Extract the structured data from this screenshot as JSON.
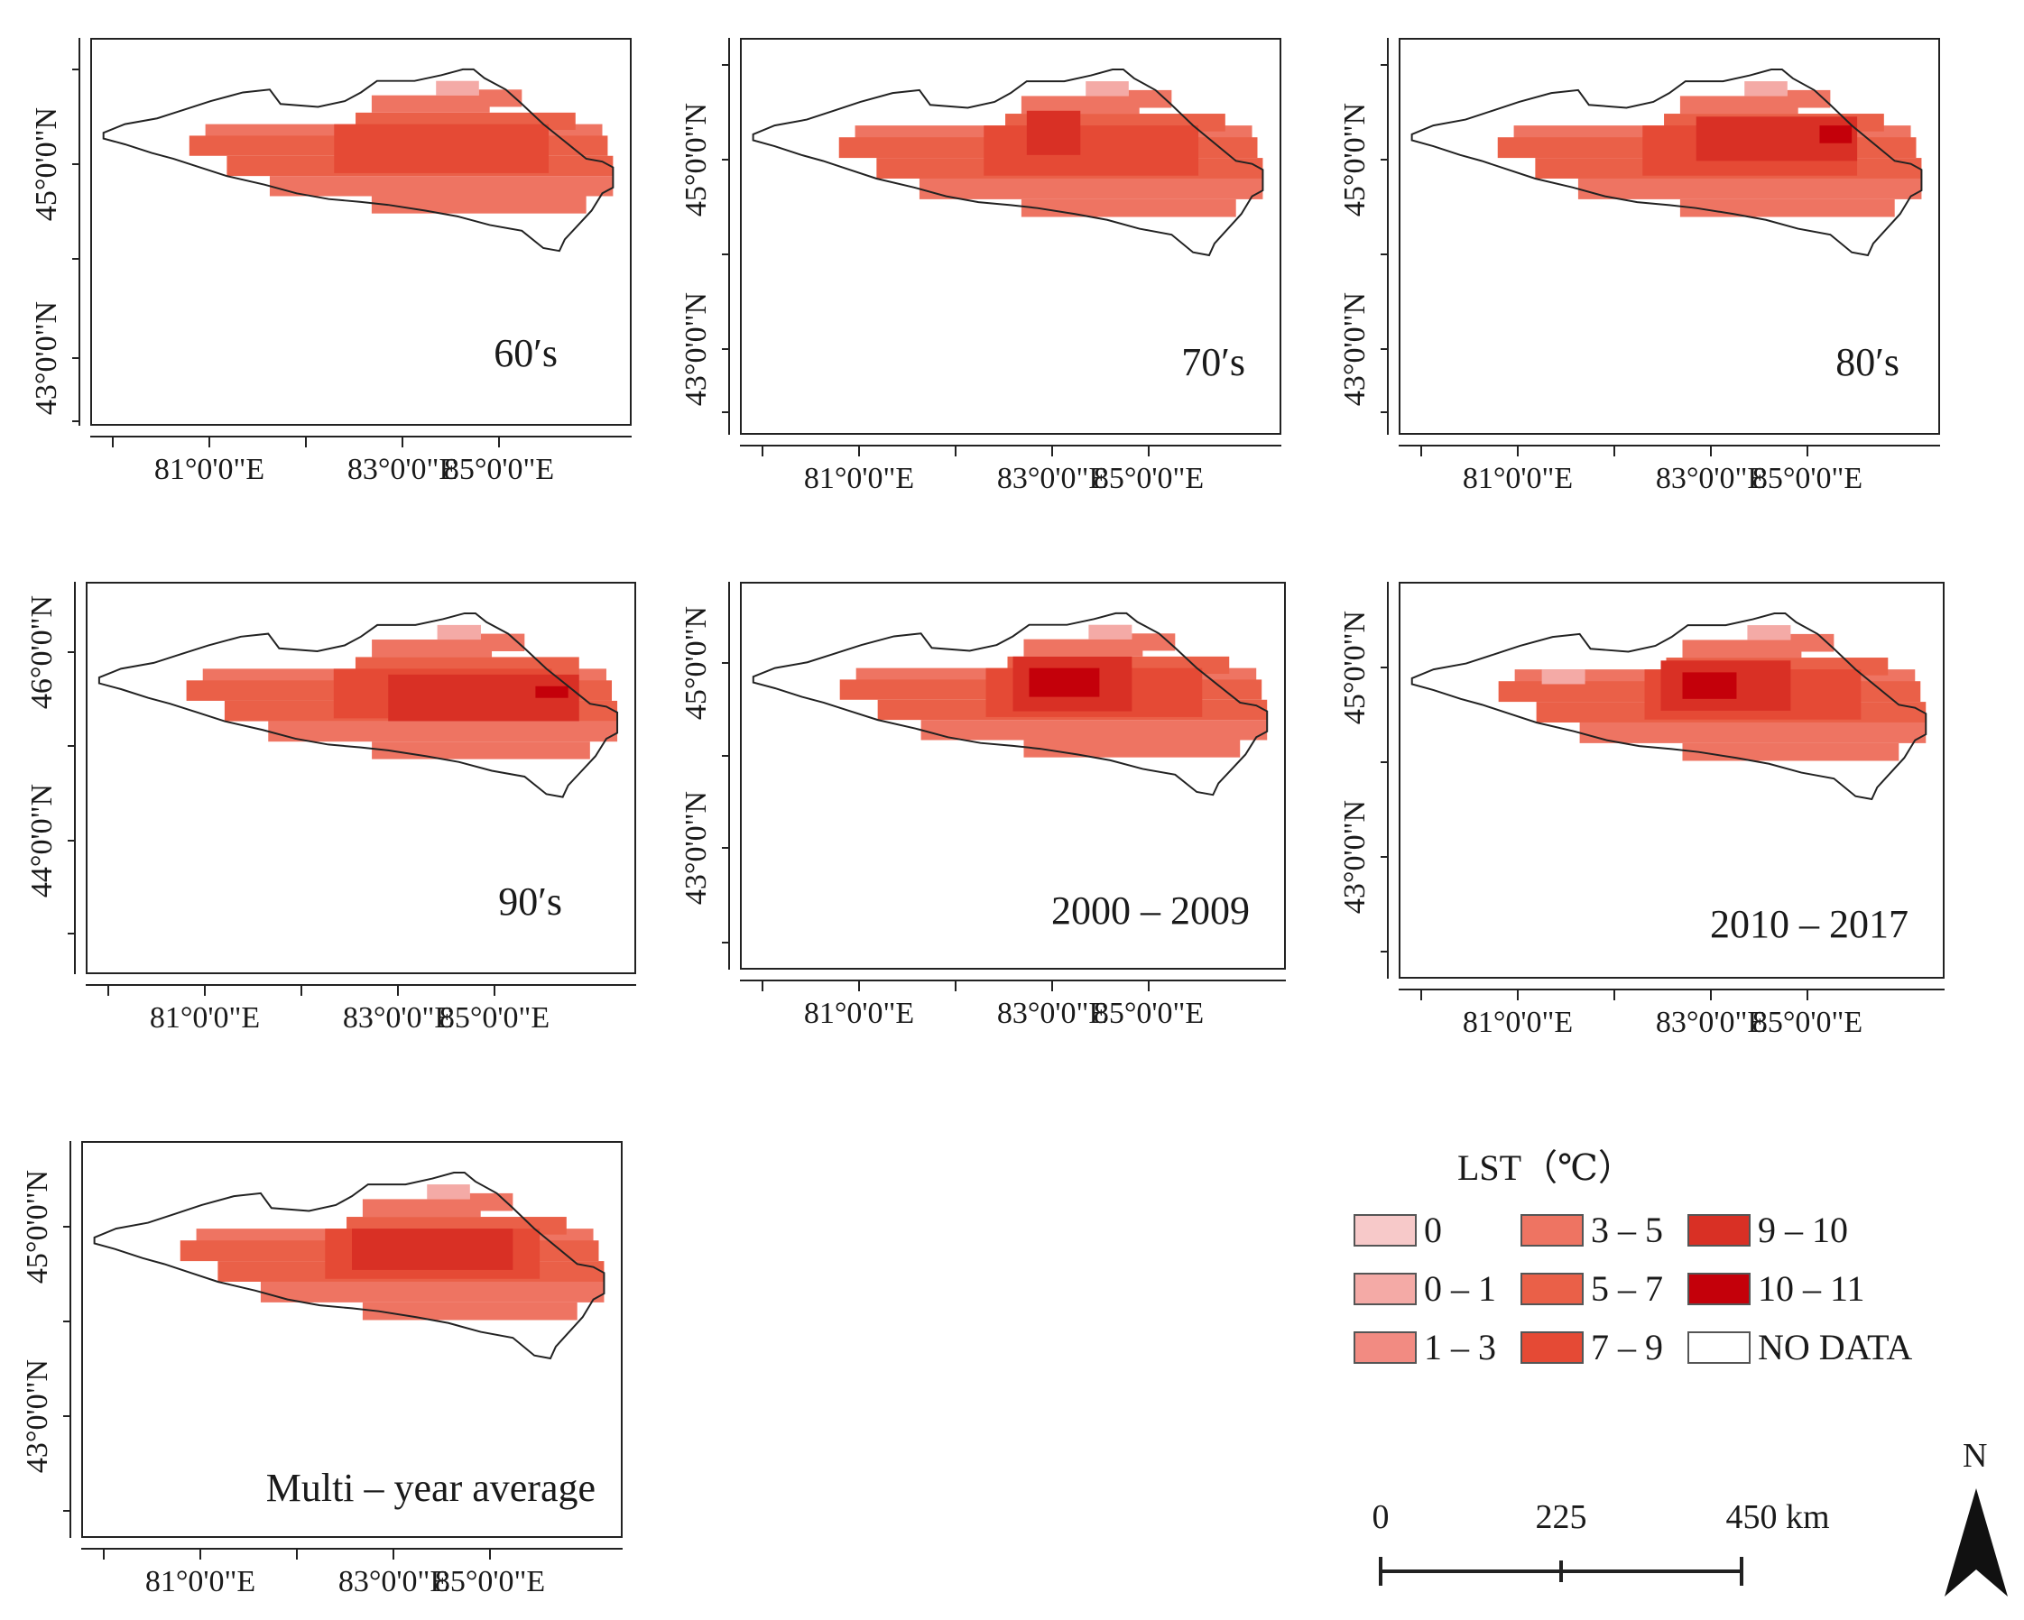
{
  "panels": [
    {
      "label": "60′s",
      "ylabels": [
        "45°0'0\"N",
        "43°0'0\"N"
      ],
      "xlabels": [
        "81°0'0\"E",
        "83°0'0\"E",
        "85°0'0\"E"
      ]
    },
    {
      "label": "70′s",
      "ylabels": [
        "45°0'0\"N",
        "43°0'0\"N"
      ],
      "xlabels": [
        "81°0'0\"E",
        "83°0'0\"E",
        "85°0'0\"E"
      ]
    },
    {
      "label": "80′s",
      "ylabels": [
        "45°0'0\"N",
        "43°0'0\"N"
      ],
      "xlabels": [
        "81°0'0\"E",
        "83°0'0\"E",
        "85°0'0\"E"
      ]
    },
    {
      "label": "90′s",
      "ylabels": [
        "46°0'0\"N",
        "44°0'0\"N"
      ],
      "xlabels": [
        "81°0'0\"E",
        "83°0'0\"E",
        "85°0'0\"E"
      ]
    },
    {
      "label": "2000 – 2009",
      "ylabels": [
        "45°0'0\"N",
        "43°0'0\"N"
      ],
      "xlabels": [
        "81°0'0\"E",
        "83°0'0\"E",
        "85°0'0\"E"
      ]
    },
    {
      "label": "2010 – 2017",
      "ylabels": [
        "45°0'0\"N",
        "43°0'0\"N"
      ],
      "xlabels": [
        "81°0'0\"E",
        "83°0'0\"E",
        "85°0'0\"E"
      ]
    },
    {
      "label": "Multi – year average",
      "ylabels": [
        "45°0'0\"N",
        "43°0'0\"N"
      ],
      "xlabels": [
        "81°0'0\"E",
        "83°0'0\"E",
        "85°0'0\"E"
      ]
    }
  ],
  "legend": {
    "title": "LST（℃）",
    "items": [
      {
        "label": "0",
        "color": "#f7c9c9"
      },
      {
        "label": "0 – 1",
        "color": "#f4aaa6"
      },
      {
        "label": "1 – 3",
        "color": "#f28b82"
      },
      {
        "label": "3 – 5",
        "color": "#ee7462"
      },
      {
        "label": "5 – 7",
        "color": "#ea6048"
      },
      {
        "label": "7 – 9",
        "color": "#e54a35"
      },
      {
        "label": "9 – 10",
        "color": "#d93025"
      },
      {
        "label": "10 – 11",
        "color": "#c4000a"
      },
      {
        "label": "NO DATA",
        "color": "#ffffff"
      }
    ]
  },
  "scalebar": {
    "labels": [
      "0",
      "225",
      "450 km"
    ]
  },
  "north": {
    "label": "N"
  }
}
